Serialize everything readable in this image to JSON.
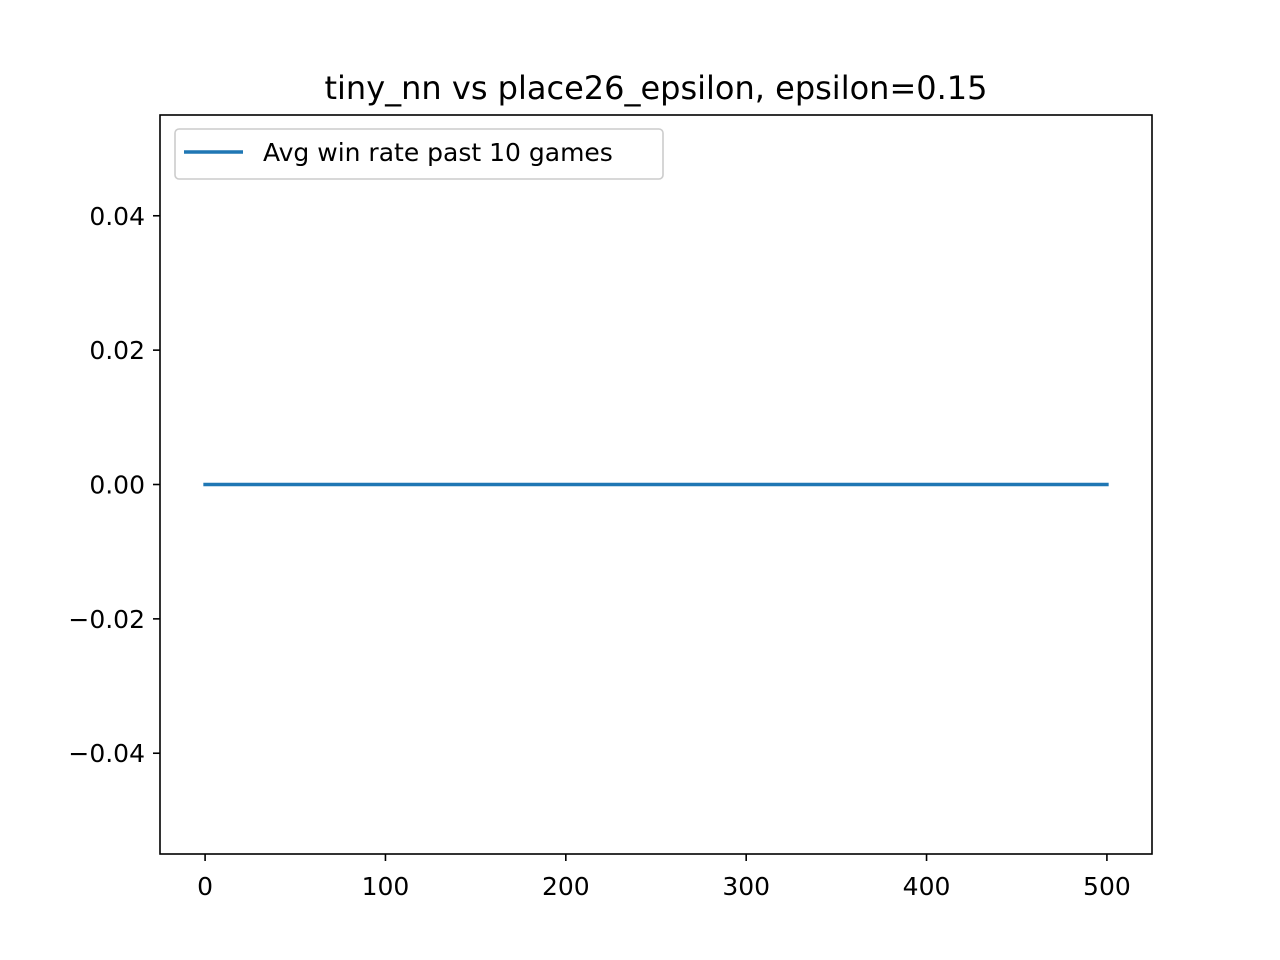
{
  "chart_data": {
    "type": "line",
    "title": "tiny_nn vs place26_epsilon, epsilon=0.15",
    "xlabel": "",
    "ylabel": "",
    "xlim": [
      -25,
      525
    ],
    "ylim": [
      -0.055,
      0.055
    ],
    "x_ticks": [
      0,
      100,
      200,
      300,
      400,
      500
    ],
    "x_tick_labels": [
      "0",
      "100",
      "200",
      "300",
      "400",
      "500"
    ],
    "y_ticks": [
      -0.04,
      -0.02,
      0.0,
      0.02,
      0.04
    ],
    "y_tick_labels": [
      "−0.04",
      "−0.02",
      "0.00",
      "0.02",
      "0.04"
    ],
    "grid": false,
    "legend_position": "upper-left",
    "series": [
      {
        "name": "Avg win rate past 10 games",
        "color": "#1f77b4",
        "x": [
          0,
          500
        ],
        "y": [
          0.0,
          0.0
        ]
      }
    ]
  }
}
